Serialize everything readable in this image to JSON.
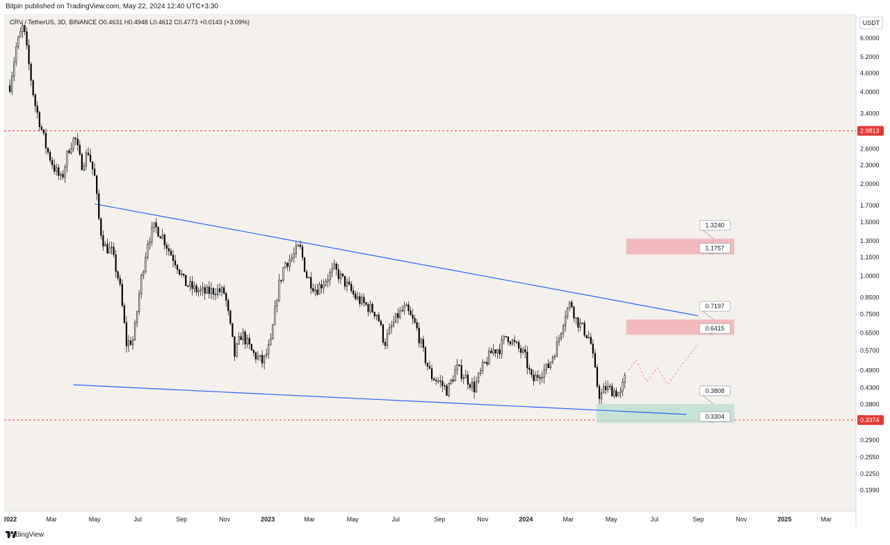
{
  "header": {
    "published_by": "Bitpin published on TradingView.com, May 22, 2024 12:40 UTC+3:30"
  },
  "symbol": {
    "info": "CRV / TetherUS, 3D, BINANCE  O0.4631  H0.4948  L0.4612  C0.4773  +0.0143 (+3.09%)"
  },
  "price_axis": {
    "unit_label": "USDT"
  },
  "footer": {
    "brand": "TradingView",
    "logo_icon": "tradingview-logo-icon"
  },
  "colors": {
    "background": "#f4f0ec",
    "candle": "#000000",
    "trendline": "#2962ff",
    "resistance_zone": "#f2a7ac",
    "support_zone": "#b7dfcf",
    "current_price_line": "#e53935",
    "projection": "#f28b82"
  },
  "chart_data": {
    "type": "candlestick",
    "y_scale": "log",
    "ylim": [
      0.17,
      7.2
    ],
    "x_tick_labels": [
      "2022",
      "Mar",
      "May",
      "Jul",
      "Sep",
      "Nov",
      "2023",
      "Mar",
      "May",
      "Jul",
      "Sep",
      "Nov",
      "2024",
      "Mar",
      "May",
      "Jul",
      "Sep",
      "Nov",
      "2025",
      "Mar"
    ],
    "y_tick_labels": [
      "6.0000",
      "5.2000",
      "4.6000",
      "4.0000",
      "3.4000",
      "2.6000",
      "2.3000",
      "2.0000",
      "1.7000",
      "1.5000",
      "1.3000",
      "1.1500",
      "1.0000",
      "0.8500",
      "0.7500",
      "0.6500",
      "0.5700",
      "0.4900",
      "0.4300",
      "0.3800",
      "0.2900",
      "0.2550",
      "0.2250",
      "0.1990"
    ],
    "price_markers": [
      {
        "label": "2.9813",
        "value": 2.9813,
        "color": "#e53935",
        "style": "dashed"
      },
      {
        "label": "0.3374",
        "value": 0.3374,
        "color": "#e53935",
        "style": "dashed"
      }
    ],
    "price_path": [
      [
        "2022-01-01",
        4.2
      ],
      [
        "2022-01-10",
        5.6
      ],
      [
        "2022-01-20",
        6.6
      ],
      [
        "2022-01-28",
        4.9
      ],
      [
        "2022-02-05",
        3.7
      ],
      [
        "2022-02-12",
        3.2
      ],
      [
        "2022-02-22",
        2.6
      ],
      [
        "2022-03-05",
        2.25
      ],
      [
        "2022-03-15",
        2.05
      ],
      [
        "2022-03-25",
        2.6
      ],
      [
        "2022-04-03",
        2.85
      ],
      [
        "2022-04-12",
        2.3
      ],
      [
        "2022-04-22",
        2.55
      ],
      [
        "2022-05-01",
        2.1
      ],
      [
        "2022-05-08",
        1.45
      ],
      [
        "2022-05-15",
        1.25
      ],
      [
        "2022-05-25",
        1.2
      ],
      [
        "2022-06-05",
        0.95
      ],
      [
        "2022-06-15",
        0.6
      ],
      [
        "2022-06-25",
        0.62
      ],
      [
        "2022-07-05",
        0.95
      ],
      [
        "2022-07-15",
        1.3
      ],
      [
        "2022-07-25",
        1.45
      ],
      [
        "2022-08-05",
        1.35
      ],
      [
        "2022-08-15",
        1.2
      ],
      [
        "2022-08-25",
        1.1
      ],
      [
        "2022-09-05",
        0.95
      ],
      [
        "2022-09-20",
        0.9
      ],
      [
        "2022-10-05",
        0.88
      ],
      [
        "2022-10-20",
        0.9
      ],
      [
        "2022-11-01",
        0.88
      ],
      [
        "2022-11-08",
        0.7
      ],
      [
        "2022-11-15",
        0.55
      ],
      [
        "2022-11-25",
        0.65
      ],
      [
        "2022-12-10",
        0.56
      ],
      [
        "2022-12-25",
        0.52
      ],
      [
        "2023-01-05",
        0.6
      ],
      [
        "2023-01-15",
        0.9
      ],
      [
        "2023-01-25",
        1.1
      ],
      [
        "2023-02-05",
        1.15
      ],
      [
        "2023-02-15",
        1.25
      ],
      [
        "2023-02-25",
        1.0
      ],
      [
        "2023-03-10",
        0.9
      ],
      [
        "2023-03-20",
        0.95
      ],
      [
        "2023-04-05",
        1.05
      ],
      [
        "2023-04-20",
        0.95
      ],
      [
        "2023-05-05",
        0.85
      ],
      [
        "2023-05-20",
        0.8
      ],
      [
        "2023-06-05",
        0.75
      ],
      [
        "2023-06-15",
        0.6
      ],
      [
        "2023-06-25",
        0.68
      ],
      [
        "2023-07-05",
        0.75
      ],
      [
        "2023-07-15",
        0.78
      ],
      [
        "2023-07-30",
        0.68
      ],
      [
        "2023-08-10",
        0.55
      ],
      [
        "2023-08-20",
        0.47
      ],
      [
        "2023-09-01",
        0.45
      ],
      [
        "2023-09-12",
        0.42
      ],
      [
        "2023-09-25",
        0.5
      ],
      [
        "2023-10-10",
        0.46
      ],
      [
        "2023-10-20",
        0.43
      ],
      [
        "2023-11-01",
        0.5
      ],
      [
        "2023-11-15",
        0.57
      ],
      [
        "2023-11-25",
        0.58
      ],
      [
        "2023-12-05",
        0.64
      ],
      [
        "2023-12-15",
        0.6
      ],
      [
        "2023-12-30",
        0.55
      ],
      [
        "2024-01-10",
        0.45
      ],
      [
        "2024-01-20",
        0.48
      ],
      [
        "2024-02-01",
        0.5
      ],
      [
        "2024-02-15",
        0.6
      ],
      [
        "2024-02-25",
        0.75
      ],
      [
        "2024-03-05",
        0.82
      ],
      [
        "2024-03-12",
        0.72
      ],
      [
        "2024-03-20",
        0.68
      ],
      [
        "2024-04-01",
        0.62
      ],
      [
        "2024-04-10",
        0.45
      ],
      [
        "2024-04-15",
        0.4
      ],
      [
        "2024-04-22",
        0.43
      ],
      [
        "2024-05-05",
        0.42
      ],
      [
        "2024-05-14",
        0.41
      ],
      [
        "2024-05-22",
        0.4773
      ]
    ],
    "trendlines": [
      {
        "name": "upper",
        "from": [
          "2022-05-01",
          1.72
        ],
        "to": [
          "2024-09-01",
          0.74
        ]
      },
      {
        "name": "lower",
        "from": [
          "2022-04-01",
          0.44
        ],
        "to": [
          "2024-08-15",
          0.352
        ]
      }
    ],
    "zones": [
      {
        "name": "resistance-zone-upper",
        "from": "2024-05-22",
        "to": "2024-10-22",
        "low": 1.1757,
        "high": 1.324,
        "color": "#f2a7ac"
      },
      {
        "name": "resistance-zone-lower",
        "from": "2024-05-22",
        "to": "2024-10-22",
        "low": 0.6415,
        "high": 0.7197,
        "color": "#f2a7ac"
      },
      {
        "name": "support-zone",
        "from": "2024-04-10",
        "to": "2024-10-22",
        "low": 0.3304,
        "high": 0.3808,
        "color": "#b7dfcf"
      }
    ],
    "zone_labels": [
      {
        "label": "1.3240",
        "value": 1.324
      },
      {
        "label": "1.1757",
        "value": 1.1757
      },
      {
        "label": "0.7197",
        "value": 0.7197
      },
      {
        "label": "0.6415",
        "value": 0.6415
      },
      {
        "label": "0.3808",
        "value": 0.3808
      },
      {
        "label": "0.3304",
        "value": 0.3304
      }
    ],
    "projection_path": [
      [
        "2024-05-25",
        0.49
      ],
      [
        "2024-06-05",
        0.53
      ],
      [
        "2024-06-20",
        0.45
      ],
      [
        "2024-07-05",
        0.5
      ],
      [
        "2024-07-20",
        0.44
      ],
      [
        "2024-08-05",
        0.5
      ],
      [
        "2024-08-20",
        0.55
      ],
      [
        "2024-09-01",
        0.6
      ]
    ]
  }
}
